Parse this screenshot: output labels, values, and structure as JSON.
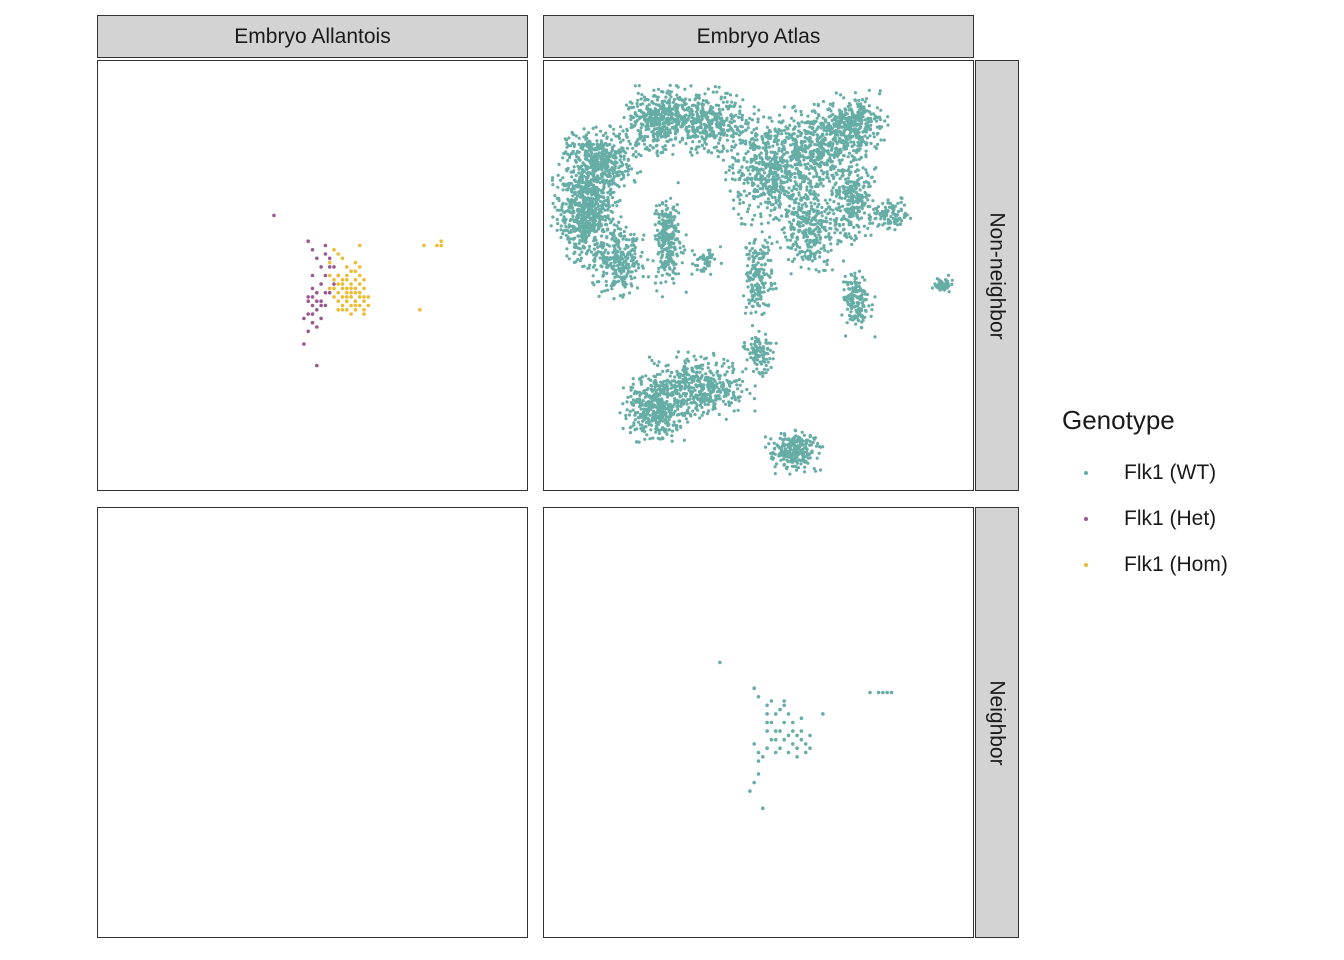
{
  "chart_data": {
    "type": "scatter",
    "facet_columns": [
      "Embryo Allantois",
      "Embryo Atlas"
    ],
    "facet_rows": [
      "Non-neighbor",
      "Neighbor"
    ],
    "legend": {
      "title": "Genotype",
      "position": "right",
      "entries": [
        {
          "label": "Flk1 (WT)",
          "color": "#66ada6"
        },
        {
          "label": "Flk1 (Het)",
          "color": "#9a5a91"
        },
        {
          "label": "Flk1 (Hom)",
          "color": "#ecbc32"
        }
      ]
    },
    "xlim": [
      0,
      100
    ],
    "ylim": [
      0,
      100
    ],
    "grid": false,
    "panels": [
      {
        "column": "Embryo Allantois",
        "row": "Non-neighbor",
        "series": [
          {
            "name": "Flk1 (Het)",
            "points": [
              [
                41,
                64
              ],
              [
                50,
                41
              ],
              [
                48,
                34
              ],
              [
                51,
                29
              ],
              [
                49,
                58
              ],
              [
                50,
                56
              ],
              [
                51,
                54
              ],
              [
                53,
                55
              ],
              [
                52,
                52
              ],
              [
                54,
                52
              ],
              [
                50,
                50
              ],
              [
                52,
                48
              ],
              [
                53,
                46
              ],
              [
                49,
                45
              ],
              [
                50,
                43
              ],
              [
                51,
                42
              ],
              [
                52,
                44
              ],
              [
                54,
                46
              ],
              [
                55,
                48
              ],
              [
                53,
                50
              ],
              [
                51,
                46
              ],
              [
                50,
                47
              ],
              [
                49,
                44
              ],
              [
                52,
                40
              ],
              [
                51,
                38
              ],
              [
                50,
                39
              ],
              [
                49,
                37
              ],
              [
                55,
                52
              ],
              [
                54,
                54
              ],
              [
                53,
                57
              ],
              [
                56,
                50
              ],
              [
                51,
                44
              ],
              [
                50,
                45
              ],
              [
                52,
                43
              ],
              [
                48,
                40
              ],
              [
                49,
                41
              ],
              [
                53,
                43
              ]
            ]
          },
          {
            "name": "Flk1 (Hom)",
            "points": [
              [
                61,
                57
              ],
              [
                76,
                57
              ],
              [
                80,
                57
              ],
              [
                80,
                58
              ],
              [
                79,
                57
              ],
              [
                75,
                42
              ],
              [
                56,
                50
              ],
              [
                58,
                50
              ],
              [
                59,
                48
              ],
              [
                60,
                49
              ],
              [
                61,
                48
              ],
              [
                62,
                47
              ],
              [
                57,
                48
              ],
              [
                58,
                46
              ],
              [
                59,
                45
              ],
              [
                60,
                46
              ],
              [
                61,
                45
              ],
              [
                62,
                44
              ],
              [
                63,
                45
              ],
              [
                60,
                44
              ],
              [
                58,
                44
              ],
              [
                57,
                45
              ],
              [
                59,
                43
              ],
              [
                61,
                43
              ],
              [
                62,
                42
              ],
              [
                60,
                42
              ],
              [
                58,
                42
              ],
              [
                57,
                43
              ],
              [
                56,
                46
              ],
              [
                55,
                45
              ],
              [
                56,
                44
              ],
              [
                60,
                51
              ],
              [
                61,
                50
              ],
              [
                62,
                49
              ],
              [
                58,
                52
              ],
              [
                57,
                54
              ],
              [
                56,
                55
              ],
              [
                55,
                56
              ],
              [
                54,
                53
              ],
              [
                56,
                48
              ],
              [
                57,
                47
              ],
              [
                59,
                47
              ],
              [
                60,
                47
              ],
              [
                61,
                46
              ],
              [
                62,
                45
              ],
              [
                58,
                49
              ],
              [
                59,
                51
              ],
              [
                60,
                53
              ],
              [
                55,
                49
              ],
              [
                54,
                47
              ],
              [
                63,
                43
              ],
              [
                62,
                41
              ],
              [
                59,
                41
              ],
              [
                57,
                42
              ],
              [
                56,
                42
              ],
              [
                58,
                47
              ],
              [
                61,
                52
              ],
              [
                60,
                43
              ],
              [
                57,
                49
              ],
              [
                55,
                47
              ],
              [
                54,
                50
              ],
              [
                58,
                45
              ],
              [
                59,
                46
              ]
            ]
          }
        ]
      },
      {
        "column": "Embryo Atlas",
        "row": "Non-neighbor",
        "series": [
          {
            "name": "Flk1 (WT)",
            "clusters": [
              {
                "cx": 10,
                "cy": 65,
                "rx": 6,
                "ry": 10,
                "n": 700
              },
              {
                "cx": 13,
                "cy": 77,
                "rx": 7,
                "ry": 6,
                "n": 400
              },
              {
                "cx": 18,
                "cy": 53,
                "rx": 5,
                "ry": 6,
                "n": 250
              },
              {
                "cx": 27,
                "cy": 86,
                "rx": 7,
                "ry": 6,
                "n": 400
              },
              {
                "cx": 29,
                "cy": 58,
                "rx": 3,
                "ry": 10,
                "n": 250
              },
              {
                "cx": 38,
                "cy": 86,
                "rx": 8,
                "ry": 6,
                "n": 350
              },
              {
                "cx": 52,
                "cy": 75,
                "rx": 8,
                "ry": 10,
                "n": 500
              },
              {
                "cx": 63,
                "cy": 80,
                "rx": 8,
                "ry": 8,
                "n": 450
              },
              {
                "cx": 72,
                "cy": 85,
                "rx": 6,
                "ry": 6,
                "n": 350
              },
              {
                "cx": 62,
                "cy": 62,
                "rx": 6,
                "ry": 9,
                "n": 350
              },
              {
                "cx": 72,
                "cy": 68,
                "rx": 4,
                "ry": 8,
                "n": 250
              },
              {
                "cx": 81,
                "cy": 64,
                "rx": 4,
                "ry": 3,
                "n": 100
              },
              {
                "cx": 73,
                "cy": 44,
                "rx": 3,
                "ry": 7,
                "n": 150
              },
              {
                "cx": 50,
                "cy": 50,
                "rx": 3,
                "ry": 9,
                "n": 180
              },
              {
                "cx": 50,
                "cy": 32,
                "rx": 3,
                "ry": 4,
                "n": 100
              },
              {
                "cx": 36,
                "cy": 24,
                "rx": 10,
                "ry": 6,
                "n": 450
              },
              {
                "cx": 26,
                "cy": 19,
                "rx": 6,
                "ry": 6,
                "n": 400
              },
              {
                "cx": 58,
                "cy": 9,
                "rx": 5,
                "ry": 4,
                "n": 250
              },
              {
                "cx": 93,
                "cy": 48,
                "rx": 2,
                "ry": 1.5,
                "n": 50
              },
              {
                "cx": 38,
                "cy": 53,
                "rx": 3,
                "ry": 3,
                "n": 50
              }
            ]
          }
        ]
      },
      {
        "column": "Embryo Allantois",
        "row": "Neighbor",
        "series": []
      },
      {
        "column": "Embryo Atlas",
        "row": "Neighbor",
        "series": [
          {
            "name": "Flk1 (WT)",
            "points": [
              [
                41,
                64
              ],
              [
                50,
                41
              ],
              [
                48,
                34
              ],
              [
                51,
                30
              ],
              [
                49,
                58
              ],
              [
                50,
                56
              ],
              [
                52,
                54
              ],
              [
                53,
                55
              ],
              [
                52,
                52
              ],
              [
                54,
                52
              ],
              [
                53,
                50
              ],
              [
                52,
                48
              ],
              [
                53,
                46
              ],
              [
                49,
                45
              ],
              [
                50,
                43
              ],
              [
                51,
                42
              ],
              [
                52,
                44
              ],
              [
                54,
                46
              ],
              [
                55,
                48
              ],
              [
                56,
                50
              ],
              [
                57,
                47
              ],
              [
                58,
                45
              ],
              [
                59,
                44
              ],
              [
                60,
                46
              ],
              [
                61,
                45
              ],
              [
                62,
                44
              ],
              [
                60,
                48
              ],
              [
                58,
                50
              ],
              [
                57,
                52
              ],
              [
                56,
                54
              ],
              [
                61,
                43
              ],
              [
                59,
                42
              ],
              [
                55,
                44
              ],
              [
                57,
                43
              ],
              [
                54,
                43
              ],
              [
                56,
                46
              ],
              [
                60,
                51
              ],
              [
                62,
                47
              ],
              [
                56,
                55
              ],
              [
                65,
                52
              ],
              [
                76,
                57
              ],
              [
                78,
                57
              ],
              [
                79,
                57
              ],
              [
                80,
                57
              ],
              [
                81,
                57
              ],
              [
                50,
                38
              ],
              [
                49,
                36
              ],
              [
                52,
                50
              ],
              [
                54,
                48
              ],
              [
                55,
                53
              ],
              [
                58,
                48
              ],
              [
                59,
                47
              ]
            ]
          }
        ]
      }
    ]
  }
}
